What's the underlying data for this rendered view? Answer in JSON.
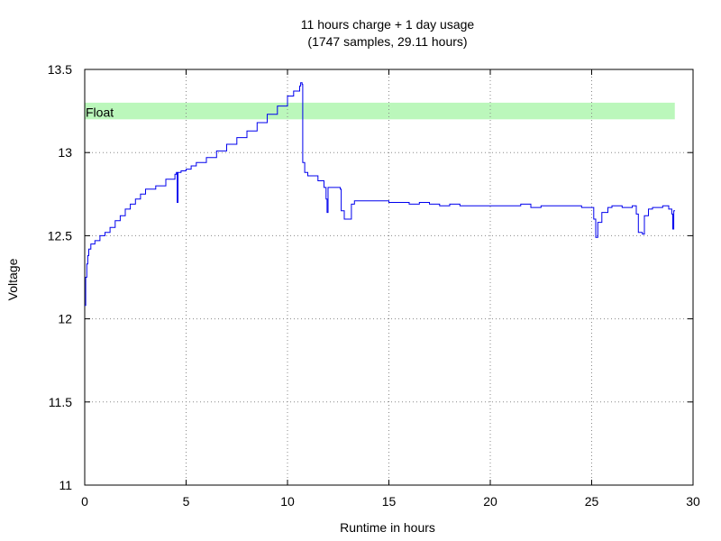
{
  "chart_data": {
    "type": "line",
    "title": "11 hours charge + 1 day usage",
    "subtitle": "(1747 samples, 29.11 hours)",
    "xlabel": "Runtime in hours",
    "ylabel": "Voltage",
    "xlim": [
      0,
      30
    ],
    "ylim": [
      11,
      13.5
    ],
    "xticks": [
      0,
      5,
      10,
      15,
      20,
      25,
      30
    ],
    "xtick_labels": [
      "0",
      "5",
      "10",
      "15",
      "20",
      "25",
      "30"
    ],
    "yticks": [
      11,
      11.5,
      12,
      12.5,
      13,
      13.5
    ],
    "ytick_labels": [
      "11",
      "11.5",
      "12",
      "12.5",
      "13",
      "13.5"
    ],
    "grid": true,
    "band": {
      "label": "Float",
      "x": [
        0,
        29.1
      ],
      "y": [
        13.2,
        13.3
      ],
      "color": "#bbf7bb"
    },
    "series": [
      {
        "color": "#0000ee",
        "points": [
          [
            0.0,
            12.08
          ],
          [
            0.05,
            12.25
          ],
          [
            0.1,
            12.33
          ],
          [
            0.15,
            12.38
          ],
          [
            0.2,
            12.42
          ],
          [
            0.3,
            12.45
          ],
          [
            0.5,
            12.47
          ],
          [
            0.75,
            12.5
          ],
          [
            1.0,
            12.52
          ],
          [
            1.25,
            12.55
          ],
          [
            1.5,
            12.59
          ],
          [
            1.75,
            12.62
          ],
          [
            2.0,
            12.66
          ],
          [
            2.25,
            12.69
          ],
          [
            2.5,
            12.72
          ],
          [
            2.75,
            12.75
          ],
          [
            3.0,
            12.78
          ],
          [
            3.5,
            12.8
          ],
          [
            4.0,
            12.84
          ],
          [
            4.45,
            12.87
          ],
          [
            4.52,
            12.88
          ],
          [
            4.56,
            12.7
          ],
          [
            4.6,
            12.88
          ],
          [
            4.75,
            12.89
          ],
          [
            5.0,
            12.9
          ],
          [
            5.25,
            12.92
          ],
          [
            5.5,
            12.94
          ],
          [
            6.0,
            12.97
          ],
          [
            6.5,
            13.01
          ],
          [
            7.0,
            13.05
          ],
          [
            7.5,
            13.09
          ],
          [
            8.0,
            13.13
          ],
          [
            8.5,
            13.18
          ],
          [
            9.0,
            13.23
          ],
          [
            9.5,
            13.28
          ],
          [
            10.0,
            13.34
          ],
          [
            10.3,
            13.37
          ],
          [
            10.6,
            13.4
          ],
          [
            10.65,
            13.42
          ],
          [
            10.72,
            13.41
          ],
          [
            10.75,
            12.94
          ],
          [
            10.85,
            12.88
          ],
          [
            11.0,
            12.86
          ],
          [
            11.5,
            12.83
          ],
          [
            11.8,
            12.79
          ],
          [
            11.9,
            12.72
          ],
          [
            11.95,
            12.64
          ],
          [
            12.0,
            12.79
          ],
          [
            12.5,
            12.79
          ],
          [
            12.6,
            12.78
          ],
          [
            12.65,
            12.65
          ],
          [
            12.8,
            12.6
          ],
          [
            13.1,
            12.6
          ],
          [
            13.15,
            12.69
          ],
          [
            13.3,
            12.71
          ],
          [
            14.0,
            12.71
          ],
          [
            15.0,
            12.7
          ],
          [
            16.0,
            12.69
          ],
          [
            16.5,
            12.7
          ],
          [
            17.0,
            12.69
          ],
          [
            17.5,
            12.68
          ],
          [
            18.0,
            12.69
          ],
          [
            18.5,
            12.68
          ],
          [
            19.0,
            12.68
          ],
          [
            20.0,
            12.68
          ],
          [
            21.0,
            12.68
          ],
          [
            21.5,
            12.69
          ],
          [
            22.0,
            12.67
          ],
          [
            22.5,
            12.68
          ],
          [
            23.0,
            12.68
          ],
          [
            24.0,
            12.68
          ],
          [
            24.5,
            12.67
          ],
          [
            25.0,
            12.67
          ],
          [
            25.1,
            12.6
          ],
          [
            25.2,
            12.49
          ],
          [
            25.3,
            12.58
          ],
          [
            25.5,
            12.64
          ],
          [
            25.8,
            12.67
          ],
          [
            26.0,
            12.68
          ],
          [
            26.5,
            12.67
          ],
          [
            27.0,
            12.68
          ],
          [
            27.2,
            12.63
          ],
          [
            27.3,
            12.52
          ],
          [
            27.5,
            12.51
          ],
          [
            27.6,
            12.62
          ],
          [
            27.8,
            12.66
          ],
          [
            28.0,
            12.67
          ],
          [
            28.5,
            12.68
          ],
          [
            28.8,
            12.66
          ],
          [
            28.95,
            12.63
          ],
          [
            29.0,
            12.54
          ],
          [
            29.05,
            12.65
          ],
          [
            29.11,
            12.65
          ]
        ]
      }
    ]
  }
}
